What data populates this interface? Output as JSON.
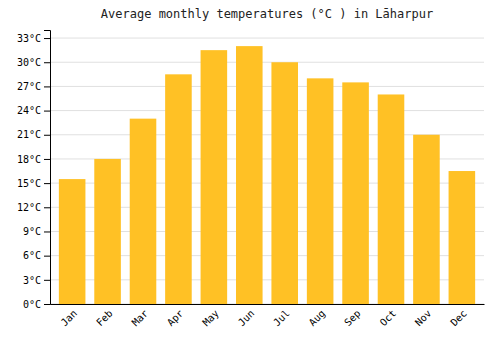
{
  "chart_data": {
    "type": "bar",
    "title": "Average monthly temperatures (°C ) in Lāharpur",
    "categories": [
      "Jan",
      "Feb",
      "Mar",
      "Apr",
      "May",
      "Jun",
      "Jul",
      "Aug",
      "Sep",
      "Oct",
      "Nov",
      "Dec"
    ],
    "values": [
      15.5,
      18.0,
      23.0,
      28.5,
      31.5,
      32.0,
      30.0,
      28.0,
      27.5,
      26.0,
      21.0,
      16.5
    ],
    "color": "#FFC125",
    "ylim": [
      0,
      34
    ],
    "yticks": [
      {
        "value": 0,
        "label": "0°C"
      },
      {
        "value": 3,
        "label": "3°C"
      },
      {
        "value": 6,
        "label": "6°C"
      },
      {
        "value": 9,
        "label": "9°C"
      },
      {
        "value": 12,
        "label": "12°C"
      },
      {
        "value": 15,
        "label": "15°C"
      },
      {
        "value": 18,
        "label": "18°C"
      },
      {
        "value": 21,
        "label": "21°C"
      },
      {
        "value": 24,
        "label": "24°C"
      },
      {
        "value": 27,
        "label": "27°C"
      },
      {
        "value": 30,
        "label": "30°C"
      },
      {
        "value": 33,
        "label": "33°C"
      }
    ],
    "grid": true
  }
}
